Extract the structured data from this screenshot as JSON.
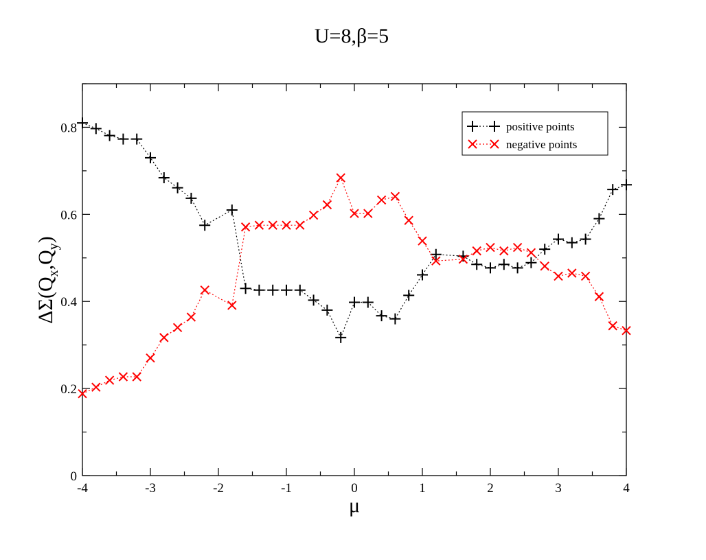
{
  "chart_data": {
    "type": "scatter",
    "title": "U=8,β=5",
    "xlabel": "μ",
    "ylabel_parts": [
      "ΔΣ(Q",
      "x",
      ",Q",
      "y",
      ")"
    ],
    "xlim": [
      -4,
      4
    ],
    "ylim": [
      0,
      0.9
    ],
    "x_ticks": [
      -4,
      -3,
      -2,
      -1,
      0,
      1,
      2,
      3,
      4
    ],
    "x_tick_labels": [
      "-4",
      "-3",
      "-2",
      "-1",
      "0",
      "1",
      "2",
      "3",
      "4"
    ],
    "y_ticks": [
      0,
      0.2,
      0.4,
      0.6,
      0.8
    ],
    "y_tick_labels": [
      "0",
      "0.2",
      "0.4",
      "0.6",
      "0.8"
    ],
    "grid": false,
    "legend_position": "top-right",
    "series": [
      {
        "name": "positive points",
        "color": "#000000",
        "marker": "plus",
        "line": "dotted",
        "x": [
          -4,
          -3.8,
          -3.6,
          -3.4,
          -3.2,
          -3,
          -2.8,
          -2.6,
          -2.4,
          -2.2,
          -1.8,
          -1.6,
          -1.4,
          -1.2,
          -1,
          -0.8,
          -0.6,
          -0.4,
          -0.2,
          0,
          0.2,
          0.4,
          0.6,
          0.8,
          1,
          1.2,
          1.6,
          1.8,
          2,
          2.2,
          2.4,
          2.6,
          2.8,
          3,
          3.2,
          3.4,
          3.6,
          3.8,
          4
        ],
        "y": [
          0.81,
          0.797,
          0.781,
          0.773,
          0.773,
          0.73,
          0.684,
          0.661,
          0.637,
          0.575,
          0.61,
          0.43,
          0.426,
          0.426,
          0.426,
          0.426,
          0.403,
          0.38,
          0.317,
          0.398,
          0.398,
          0.367,
          0.36,
          0.414,
          0.461,
          0.508,
          0.504,
          0.485,
          0.477,
          0.485,
          0.477,
          0.489,
          0.52,
          0.543,
          0.535,
          0.543,
          0.59,
          0.657,
          0.668
        ]
      },
      {
        "name": "negative points",
        "color": "#ff0000",
        "marker": "cross",
        "line": "dotted",
        "x": [
          -4,
          -3.8,
          -3.6,
          -3.4,
          -3.2,
          -3,
          -2.8,
          -2.6,
          -2.4,
          -2.2,
          -1.8,
          -1.6,
          -1.4,
          -1.2,
          -1,
          -0.8,
          -0.6,
          -0.4,
          -0.2,
          0,
          0.2,
          0.4,
          0.6,
          0.8,
          1,
          1.2,
          1.6,
          1.8,
          2,
          2.2,
          2.4,
          2.6,
          2.8,
          3,
          3.2,
          3.4,
          3.6,
          3.8,
          4
        ],
        "y": [
          0.188,
          0.203,
          0.219,
          0.227,
          0.227,
          0.27,
          0.317,
          0.34,
          0.364,
          0.426,
          0.391,
          0.571,
          0.575,
          0.575,
          0.575,
          0.575,
          0.598,
          0.622,
          0.684,
          0.602,
          0.602,
          0.633,
          0.641,
          0.586,
          0.539,
          0.493,
          0.497,
          0.516,
          0.524,
          0.516,
          0.524,
          0.512,
          0.481,
          0.458,
          0.465,
          0.458,
          0.411,
          0.344,
          0.333
        ]
      }
    ]
  }
}
